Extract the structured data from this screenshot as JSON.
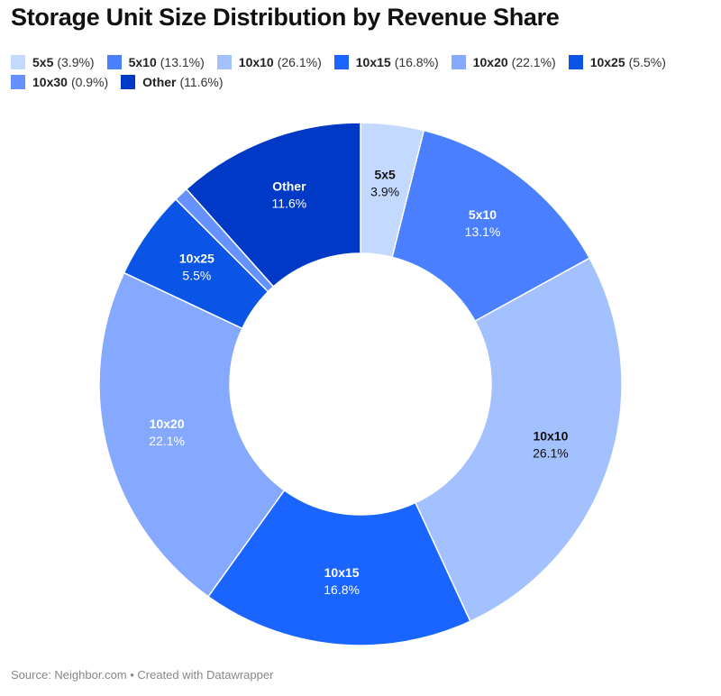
{
  "title": "Storage Unit Size Distribution by Revenue Share",
  "source": "Source: Neighbor.com • Created with Datawrapper",
  "chart_data": {
    "type": "pie",
    "donut": true,
    "title": "Storage Unit Size Distribution by Revenue Share",
    "legend_position": "top",
    "categories": [
      "5x5",
      "5x10",
      "10x10",
      "10x15",
      "10x20",
      "10x25",
      "10x30",
      "Other"
    ],
    "values": [
      3.9,
      13.1,
      26.1,
      16.8,
      22.1,
      5.5,
      0.9,
      11.6
    ],
    "value_labels": [
      "3.9%",
      "13.1%",
      "26.1%",
      "16.8%",
      "22.1%",
      "5.5%",
      "0.9%",
      "11.6%"
    ],
    "legend_values": [
      "(3.9%)",
      "(13.1%)",
      "(26.1%)",
      "(16.8%)",
      "(22.1%)",
      "(5.5%)",
      "(0.9%)",
      "(11.6%)"
    ],
    "colors": [
      "#c4d9ff",
      "#4a7fff",
      "#a3c0ff",
      "#1a64ff",
      "#84a9ff",
      "#0a55e6",
      "#6692ff",
      "#0039c6"
    ],
    "label_colors": [
      "#111111",
      "#ffffff",
      "#111111",
      "#ffffff",
      "#ffffff",
      "#ffffff",
      "#ffffff",
      "#ffffff"
    ],
    "show_slice_label": [
      true,
      true,
      true,
      true,
      true,
      true,
      false,
      true
    ]
  }
}
